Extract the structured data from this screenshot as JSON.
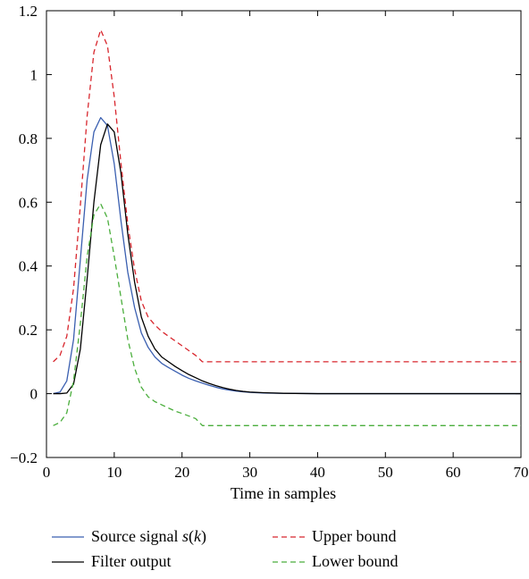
{
  "chart_data": {
    "type": "line",
    "title": "",
    "xlabel": "Time in samples",
    "ylabel": "",
    "xlim": [
      0,
      70
    ],
    "ylim": [
      -0.2,
      1.2
    ],
    "xticks": [
      0,
      10,
      20,
      30,
      40,
      50,
      60,
      70
    ],
    "xtick_labels": [
      "0",
      "10",
      "20",
      "30",
      "40",
      "50",
      "60",
      "70"
    ],
    "yticks": [
      -0.2,
      0,
      0.2,
      0.4,
      0.6,
      0.8,
      1,
      1.2
    ],
    "ytick_labels": [
      "−0.2",
      "0",
      "0.2",
      "0.4",
      "0.6",
      "0.8",
      "1",
      "1.2"
    ],
    "grid": false,
    "legend_position": "bottom",
    "series": [
      {
        "name": "Source signal s(k)",
        "name_parts": [
          "Source signal ",
          "s",
          "(",
          "k",
          ")"
        ],
        "color": "#3a5fb0",
        "dash": "solid",
        "x": [
          1,
          2,
          3,
          4,
          5,
          6,
          7,
          8,
          9,
          10,
          11,
          12,
          13,
          14,
          15,
          16,
          17,
          18,
          19,
          20,
          21,
          22,
          23,
          24,
          25,
          26,
          27,
          28,
          29,
          30,
          32,
          35,
          40,
          50,
          60,
          70
        ],
        "y": [
          0.0,
          0.005,
          0.04,
          0.17,
          0.42,
          0.67,
          0.82,
          0.865,
          0.84,
          0.72,
          0.54,
          0.38,
          0.27,
          0.19,
          0.145,
          0.115,
          0.095,
          0.082,
          0.07,
          0.058,
          0.048,
          0.04,
          0.033,
          0.026,
          0.02,
          0.015,
          0.011,
          0.008,
          0.006,
          0.004,
          0.002,
          0.001,
          0.0,
          0.0,
          0.0,
          0.0
        ]
      },
      {
        "name": "Filter output",
        "color": "#000000",
        "dash": "solid",
        "x": [
          1,
          2,
          3,
          4,
          5,
          6,
          7,
          8,
          9,
          10,
          11,
          12,
          13,
          14,
          15,
          16,
          17,
          18,
          19,
          20,
          21,
          22,
          23,
          24,
          25,
          26,
          27,
          28,
          29,
          30,
          32,
          35,
          40,
          50,
          60,
          70
        ],
        "y": [
          0.0,
          0.0,
          0.002,
          0.03,
          0.14,
          0.36,
          0.6,
          0.78,
          0.845,
          0.82,
          0.69,
          0.5,
          0.35,
          0.24,
          0.18,
          0.14,
          0.115,
          0.1,
          0.085,
          0.072,
          0.06,
          0.05,
          0.04,
          0.032,
          0.025,
          0.019,
          0.014,
          0.01,
          0.007,
          0.005,
          0.003,
          0.001,
          0.0,
          0.0,
          0.0,
          0.0
        ]
      },
      {
        "name": "Upper bound",
        "color": "#d8262d",
        "dash": "dashed",
        "x": [
          1,
          2,
          3,
          4,
          5,
          6,
          7,
          8,
          9,
          10,
          11,
          12,
          13,
          14,
          15,
          16,
          17,
          18,
          19,
          20,
          21,
          22,
          23,
          24,
          30,
          40,
          50,
          60,
          70
        ],
        "y": [
          0.1,
          0.12,
          0.18,
          0.33,
          0.59,
          0.87,
          1.07,
          1.14,
          1.09,
          0.93,
          0.72,
          0.53,
          0.39,
          0.29,
          0.24,
          0.215,
          0.195,
          0.18,
          0.165,
          0.15,
          0.135,
          0.12,
          0.1,
          0.1,
          0.1,
          0.1,
          0.1,
          0.1,
          0.1
        ]
      },
      {
        "name": "Lower bound",
        "color": "#4aae3c",
        "dash": "dashed",
        "x": [
          1,
          2,
          3,
          4,
          5,
          6,
          7,
          8,
          9,
          10,
          11,
          12,
          13,
          14,
          15,
          16,
          17,
          18,
          19,
          20,
          21,
          22,
          23,
          24,
          30,
          40,
          50,
          60,
          70
        ],
        "y": [
          -0.1,
          -0.09,
          -0.06,
          0.04,
          0.22,
          0.43,
          0.56,
          0.595,
          0.55,
          0.43,
          0.3,
          0.17,
          0.08,
          0.02,
          -0.01,
          -0.025,
          -0.035,
          -0.045,
          -0.055,
          -0.062,
          -0.07,
          -0.078,
          -0.1,
          -0.1,
          -0.1,
          -0.1,
          -0.1,
          -0.1,
          -0.1
        ]
      }
    ]
  }
}
